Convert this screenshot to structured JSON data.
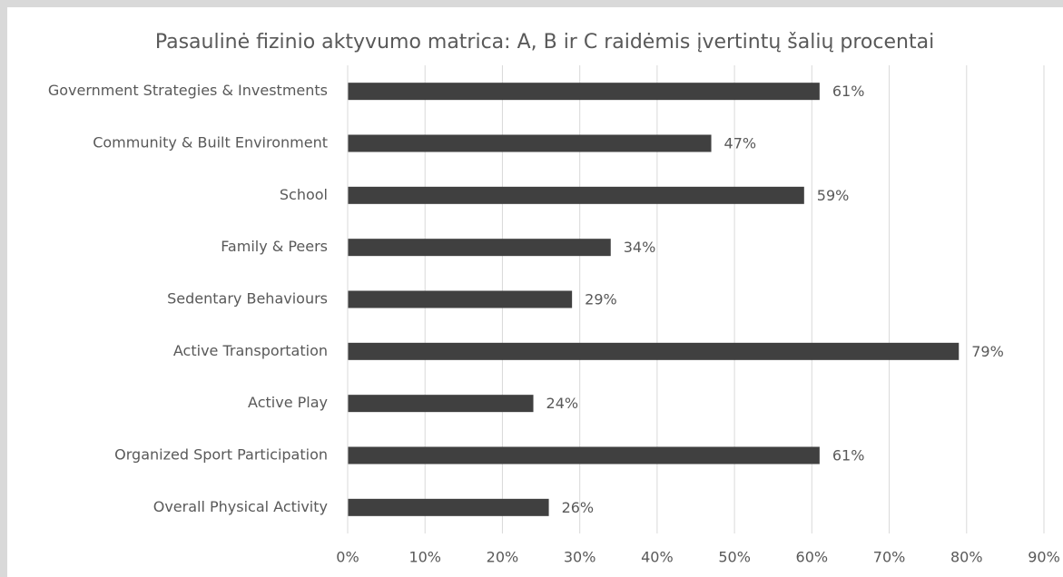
{
  "chart_data": {
    "type": "bar",
    "orientation": "horizontal",
    "title": "Pasaulinė fizinio aktyvumo matrica: A, B ir C raidėmis įvertintų šalių procentai",
    "categories": [
      "Government Strategies & Investments",
      "Community & Built Environment",
      "School",
      "Family & Peers",
      "Sedentary Behaviours",
      "Active Transportation",
      "Active Play",
      "Organized Sport Participation",
      "Overall Physical Activity"
    ],
    "values": [
      61,
      47,
      59,
      34,
      29,
      79,
      24,
      61,
      26
    ],
    "value_labels": [
      "61%",
      "47%",
      "59%",
      "34%",
      "29%",
      "79%",
      "24%",
      "61%",
      "26%"
    ],
    "color": "#404040",
    "xlim": [
      0,
      90
    ],
    "xticks": [
      {
        "value": 0,
        "label": "0%"
      },
      {
        "value": 10,
        "label": "10%"
      },
      {
        "value": 20,
        "label": "20%"
      },
      {
        "value": 30,
        "label": "30%"
      },
      {
        "value": 40,
        "label": "40%"
      },
      {
        "value": 50,
        "label": "50%"
      },
      {
        "value": 60,
        "label": "60%"
      },
      {
        "value": 70,
        "label": "70%"
      },
      {
        "value": 80,
        "label": "80%"
      },
      {
        "value": 90,
        "label": "90%"
      }
    ],
    "grid": true
  }
}
